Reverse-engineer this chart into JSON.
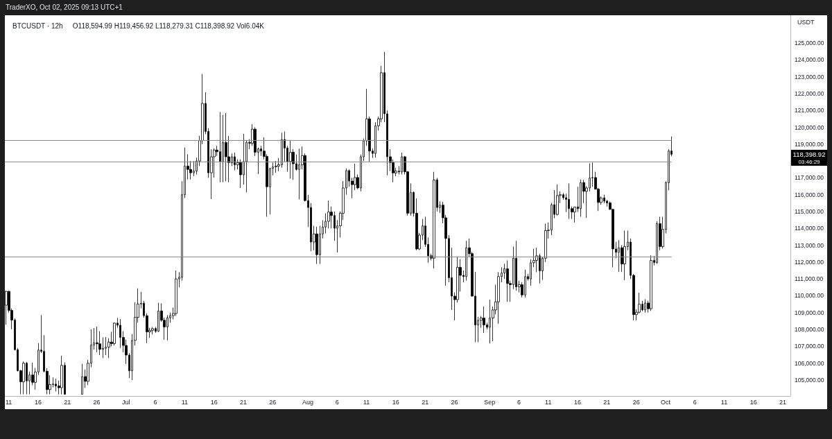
{
  "chart_data": {
    "type": "candlestick",
    "title": "BTCUSDT · 12h",
    "subtitle": "O118,594.99 H119,456.92 L118,279.31 C118,398.92 Vol6.04K",
    "ylabel": "USDT",
    "annotations": [
      "TraderXO, Oct 02, 2025 09:13 UTC+1",
      "118,398.92",
      "03:46:29"
    ],
    "x": [
      "2025-06-10T13:00",
      "2025-06-11T01:00",
      "2025-06-11T13:00",
      "2025-06-12T01:00",
      "2025-06-12T13:00",
      "2025-06-13T01:00",
      "2025-06-13T13:00",
      "2025-06-14T01:00",
      "2025-06-14T13:00",
      "2025-06-15T01:00",
      "2025-06-15T13:00",
      "2025-06-16T01:00",
      "2025-06-16T13:00",
      "2025-06-17T01:00",
      "2025-06-17T13:00",
      "2025-06-18T01:00",
      "2025-06-18T13:00",
      "2025-06-19T01:00",
      "2025-06-19T13:00",
      "2025-06-20T01:00",
      "2025-06-20T13:00",
      "2025-06-23T13:00",
      "2025-06-24T01:00",
      "2025-06-24T13:00",
      "2025-06-25T01:00",
      "2025-06-25T13:00",
      "2025-06-26T01:00",
      "2025-06-26T13:00",
      "2025-06-27T01:00",
      "2025-06-27T13:00",
      "2025-06-28T01:00",
      "2025-06-28T13:00",
      "2025-06-29T01:00",
      "2025-06-29T13:00",
      "2025-06-30T01:00",
      "2025-06-30T13:00",
      "2025-07-01T01:00",
      "2025-07-01T13:00",
      "2025-07-02T01:00",
      "2025-07-02T13:00",
      "2025-07-03T01:00",
      "2025-07-03T13:00",
      "2025-07-04T01:00",
      "2025-07-04T13:00",
      "2025-07-05T01:00",
      "2025-07-05T13:00",
      "2025-07-06T01:00",
      "2025-07-06T13:00",
      "2025-07-07T01:00",
      "2025-07-07T13:00",
      "2025-07-08T01:00",
      "2025-07-08T13:00",
      "2025-07-09T01:00",
      "2025-07-09T13:00",
      "2025-07-10T01:00",
      "2025-07-10T13:00",
      "2025-07-11T01:00",
      "2025-07-11T13:00",
      "2025-07-12T01:00",
      "2025-07-12T13:00",
      "2025-07-13T01:00",
      "2025-07-13T13:00",
      "2025-07-14T01:00",
      "2025-07-14T13:00",
      "2025-07-15T01:00",
      "2025-07-15T13:00",
      "2025-07-16T01:00",
      "2025-07-16T13:00",
      "2025-07-17T01:00",
      "2025-07-17T13:00",
      "2025-07-18T01:00",
      "2025-07-18T13:00",
      "2025-07-19T01:00",
      "2025-07-19T13:00",
      "2025-07-20T01:00",
      "2025-07-20T13:00",
      "2025-07-21T01:00",
      "2025-07-21T13:00",
      "2025-07-22T01:00",
      "2025-07-22T13:00",
      "2025-07-23T01:00",
      "2025-07-23T13:00",
      "2025-07-24T01:00",
      "2025-07-24T13:00",
      "2025-07-25T01:00",
      "2025-07-25T13:00",
      "2025-07-26T01:00",
      "2025-07-26T13:00",
      "2025-07-27T01:00",
      "2025-07-27T13:00",
      "2025-07-28T01:00",
      "2025-07-28T13:00",
      "2025-07-29T01:00",
      "2025-07-29T13:00",
      "2025-07-30T01:00",
      "2025-07-30T13:00",
      "2025-07-31T01:00",
      "2025-07-31T13:00",
      "2025-08-01T01:00",
      "2025-08-01T13:00",
      "2025-08-02T01:00",
      "2025-08-02T13:00",
      "2025-08-03T01:00",
      "2025-08-03T13:00",
      "2025-08-04T01:00",
      "2025-08-04T13:00",
      "2025-08-05T01:00",
      "2025-08-05T13:00",
      "2025-08-06T01:00",
      "2025-08-06T13:00",
      "2025-08-07T01:00",
      "2025-08-07T13:00",
      "2025-08-08T01:00",
      "2025-08-08T13:00",
      "2025-08-09T01:00",
      "2025-08-09T13:00",
      "2025-08-10T01:00",
      "2025-08-10T13:00",
      "2025-08-11T01:00",
      "2025-08-11T13:00",
      "2025-08-12T01:00",
      "2025-08-12T13:00",
      "2025-08-13T01:00",
      "2025-08-13T13:00",
      "2025-08-14T01:00",
      "2025-08-14T13:00",
      "2025-08-15T01:00",
      "2025-08-15T13:00",
      "2025-08-16T01:00",
      "2025-08-16T13:00",
      "2025-08-17T01:00",
      "2025-08-17T13:00",
      "2025-08-18T01:00",
      "2025-08-18T13:00",
      "2025-08-19T01:00",
      "2025-08-19T13:00",
      "2025-08-20T01:00",
      "2025-08-20T13:00",
      "2025-08-21T01:00",
      "2025-08-21T13:00",
      "2025-08-22T01:00",
      "2025-08-22T13:00",
      "2025-08-23T01:00",
      "2025-08-23T13:00",
      "2025-08-24T01:00",
      "2025-08-24T13:00",
      "2025-08-25T01:00",
      "2025-08-25T13:00",
      "2025-08-26T01:00",
      "2025-08-26T13:00",
      "2025-08-27T01:00",
      "2025-08-27T13:00",
      "2025-08-28T01:00",
      "2025-08-28T13:00",
      "2025-08-29T01:00",
      "2025-08-29T13:00",
      "2025-08-30T01:00",
      "2025-08-30T13:00",
      "2025-08-31T01:00",
      "2025-08-31T13:00",
      "2025-09-01T01:00",
      "2025-09-01T13:00",
      "2025-09-02T01:00",
      "2025-09-02T13:00",
      "2025-09-03T01:00",
      "2025-09-03T13:00",
      "2025-09-04T01:00",
      "2025-09-04T13:00",
      "2025-09-05T01:00",
      "2025-09-05T13:00",
      "2025-09-06T01:00",
      "2025-09-06T13:00",
      "2025-09-07T01:00",
      "2025-09-07T13:00",
      "2025-09-08T01:00",
      "2025-09-08T13:00",
      "2025-09-09T01:00",
      "2025-09-09T13:00",
      "2025-09-10T01:00",
      "2025-09-10T13:00",
      "2025-09-11T01:00",
      "2025-09-11T13:00",
      "2025-09-12T01:00",
      "2025-09-12T13:00",
      "2025-09-13T01:00",
      "2025-09-13T13:00",
      "2025-09-14T01:00",
      "2025-09-14T13:00",
      "2025-09-15T01:00",
      "2025-09-15T13:00",
      "2025-09-16T01:00",
      "2025-09-16T13:00",
      "2025-09-17T01:00",
      "2025-09-17T13:00",
      "2025-09-18T01:00",
      "2025-09-18T13:00",
      "2025-09-19T01:00",
      "2025-09-19T13:00",
      "2025-09-20T01:00",
      "2025-09-20T13:00",
      "2025-09-21T01:00",
      "2025-09-21T13:00",
      "2025-09-22T01:00",
      "2025-09-22T13:00",
      "2025-09-23T01:00",
      "2025-09-23T13:00",
      "2025-09-24T01:00",
      "2025-09-24T13:00",
      "2025-09-25T01:00",
      "2025-09-25T13:00",
      "2025-09-26T01:00",
      "2025-09-26T13:00",
      "2025-09-27T01:00",
      "2025-09-27T13:00",
      "2025-09-28T01:00",
      "2025-09-28T13:00",
      "2025-09-29T01:00",
      "2025-09-29T13:00",
      "2025-09-30T01:00",
      "2025-09-30T13:00",
      "2025-10-01T01:00",
      "2025-10-01T13:00",
      "2025-10-02T01:00"
    ],
    "ohlc": [
      [
        109440,
        110300,
        108280,
        110260
      ],
      [
        110260,
        110300,
        109000,
        109130
      ],
      [
        109130,
        109250,
        108010,
        108560
      ],
      [
        108560,
        108650,
        106750,
        106800
      ],
      [
        106800,
        106900,
        105500,
        105550
      ],
      [
        105550,
        105600,
        104150,
        104890
      ],
      [
        104890,
        106100,
        104150,
        106000
      ],
      [
        106000,
        106080,
        104150,
        104950
      ],
      [
        104950,
        105500,
        104150,
        105300
      ],
      [
        105300,
        106030,
        104700,
        104860
      ],
      [
        104860,
        105710,
        104430,
        105480
      ],
      [
        105480,
        107190,
        105300,
        106780
      ],
      [
        106780,
        108850,
        106600,
        106700
      ],
      [
        106700,
        107660,
        105450,
        105520
      ],
      [
        105520,
        105700,
        104150,
        104430
      ],
      [
        104430,
        105290,
        104150,
        104730
      ],
      [
        104730,
        105150,
        104560,
        104760
      ],
      [
        104760,
        105080,
        104320,
        104650
      ],
      [
        104650,
        104970,
        104150,
        104540
      ],
      [
        104540,
        106440,
        104150,
        105870
      ],
      [
        105870,
        106040,
        104150,
        104150
      ],
      [
        104150,
        105960,
        104150,
        105200
      ],
      [
        105200,
        105620,
        104530,
        104920
      ],
      [
        104920,
        106200,
        104700,
        106000
      ],
      [
        106000,
        108010,
        105750,
        107080
      ],
      [
        107080,
        108080,
        106800,
        107210
      ],
      [
        107210,
        108170,
        106650,
        107150
      ],
      [
        107150,
        107900,
        106480,
        106820
      ],
      [
        106820,
        107530,
        106300,
        106880
      ],
      [
        106880,
        107550,
        106480,
        106950
      ],
      [
        106950,
        107480,
        106300,
        107250
      ],
      [
        107250,
        107860,
        107000,
        107160
      ],
      [
        107160,
        108420,
        107050,
        108380
      ],
      [
        108380,
        108690,
        108100,
        108250
      ],
      [
        108250,
        108620,
        106900,
        107530
      ],
      [
        107530,
        107900,
        106650,
        107050
      ],
      [
        107050,
        107400,
        105950,
        106480
      ],
      [
        106480,
        106600,
        105110,
        105550
      ],
      [
        105550,
        107730,
        105000,
        107350
      ],
      [
        107350,
        109620,
        107050,
        108720
      ],
      [
        108720,
        110440,
        108400,
        109510
      ],
      [
        109510,
        110230,
        109250,
        109560
      ],
      [
        109560,
        109700,
        108700,
        108820
      ],
      [
        108820,
        108950,
        107190,
        107860
      ],
      [
        107860,
        108100,
        107500,
        107950
      ],
      [
        107950,
        108150,
        107700,
        108050
      ],
      [
        108050,
        108150,
        107800,
        107900
      ],
      [
        107900,
        109580,
        107850,
        109100
      ],
      [
        109100,
        109550,
        108450,
        108550
      ],
      [
        108550,
        108700,
        107390,
        108150
      ],
      [
        108150,
        108850,
        107350,
        108690
      ],
      [
        108690,
        109000,
        108400,
        108820
      ],
      [
        108820,
        109300,
        108600,
        108950
      ],
      [
        108950,
        111500,
        108800,
        111000
      ],
      [
        111000,
        111400,
        110500,
        111100
      ],
      [
        111100,
        116800,
        110900,
        116000
      ],
      [
        116000,
        118800,
        115800,
        117700
      ],
      [
        117700,
        118400,
        116900,
        117500
      ],
      [
        117500,
        118000,
        116900,
        117300
      ],
      [
        117300,
        118000,
        117100,
        117400
      ],
      [
        117400,
        118200,
        117200,
        118000
      ],
      [
        118000,
        119500,
        117700,
        119210
      ],
      [
        119210,
        123170,
        119000,
        121420
      ],
      [
        121420,
        122080,
        119600,
        119750
      ],
      [
        119750,
        119950,
        117000,
        117300
      ],
      [
        117300,
        118700,
        115740,
        118250
      ],
      [
        118250,
        118750,
        117010,
        118650
      ],
      [
        118650,
        118900,
        118300,
        118550
      ],
      [
        118550,
        120910,
        116740,
        117950
      ],
      [
        117950,
        120730,
        116740,
        119100
      ],
      [
        119100,
        120850,
        116800,
        118250
      ],
      [
        118250,
        119480,
        116740,
        117900
      ],
      [
        117900,
        118450,
        117700,
        118250
      ],
      [
        118250,
        118500,
        117450,
        117770
      ],
      [
        117770,
        118100,
        117500,
        117900
      ],
      [
        117900,
        118100,
        116400,
        117180
      ],
      [
        117180,
        119610,
        116600,
        117970
      ],
      [
        117970,
        119200,
        116130,
        119100
      ],
      [
        119100,
        119300,
        118700,
        119050
      ],
      [
        119050,
        120190,
        118900,
        119890
      ],
      [
        119890,
        120000,
        118300,
        118520
      ],
      [
        118520,
        118800,
        117220,
        118720
      ],
      [
        118720,
        118900,
        118300,
        118590
      ],
      [
        118590,
        119410,
        118100,
        118270
      ],
      [
        118270,
        118400,
        114690,
        116470
      ],
      [
        116470,
        117600,
        114830,
        117560
      ],
      [
        117560,
        117900,
        117150,
        117650
      ],
      [
        117650,
        118000,
        117300,
        117700
      ],
      [
        117700,
        118180,
        117400,
        117780
      ],
      [
        117780,
        119680,
        117600,
        119270
      ],
      [
        119270,
        119750,
        117970,
        118770
      ],
      [
        118770,
        118900,
        117360,
        117970
      ],
      [
        117970,
        119200,
        116950,
        118520
      ],
      [
        118520,
        118700,
        116880,
        117840
      ],
      [
        117840,
        118380,
        117430,
        117500
      ],
      [
        117500,
        118730,
        115720,
        117770
      ],
      [
        117770,
        118860,
        117500,
        118320
      ],
      [
        118320,
        118450,
        115600,
        115650
      ],
      [
        115650,
        115990,
        114080,
        115240
      ],
      [
        115240,
        115500,
        112640,
        113190
      ],
      [
        113190,
        114150,
        112700,
        113670
      ],
      [
        113670,
        114100,
        111890,
        112440
      ],
      [
        112440,
        114150,
        111890,
        113670
      ],
      [
        113670,
        114490,
        113400,
        114080
      ],
      [
        114080,
        114900,
        113700,
        114420
      ],
      [
        114420,
        115650,
        114000,
        114970
      ],
      [
        114970,
        115300,
        114000,
        114760
      ],
      [
        114760,
        115000,
        113260,
        114010
      ],
      [
        114010,
        114500,
        112570,
        114150
      ],
      [
        114150,
        115000,
        113460,
        114900
      ],
      [
        114900,
        116810,
        114500,
        116400
      ],
      [
        116400,
        117560,
        116000,
        117430
      ],
      [
        117430,
        117500,
        116470,
        116810
      ],
      [
        116810,
        117000,
        115790,
        116600
      ],
      [
        116600,
        117840,
        116270,
        117020
      ],
      [
        117020,
        117200,
        116330,
        116400
      ],
      [
        116400,
        118380,
        116200,
        118250
      ],
      [
        118250,
        119340,
        118000,
        119200
      ],
      [
        119200,
        122280,
        118900,
        120500
      ],
      [
        120500,
        120640,
        117970,
        118590
      ],
      [
        118590,
        118750,
        118180,
        118450
      ],
      [
        118450,
        120300,
        118200,
        120090
      ],
      [
        120090,
        120640,
        119800,
        120500
      ],
      [
        120500,
        123650,
        120300,
        123240
      ],
      [
        123240,
        124470,
        120300,
        120800
      ],
      [
        120800,
        121000,
        117150,
        118250
      ],
      [
        118250,
        118700,
        117400,
        117900
      ],
      [
        117900,
        118100,
        116740,
        117290
      ],
      [
        117290,
        117600,
        117100,
        117400
      ],
      [
        117400,
        117700,
        117200,
        117350
      ],
      [
        117350,
        118500,
        117200,
        118250
      ],
      [
        118250,
        118300,
        117200,
        117360
      ],
      [
        117360,
        117400,
        114760,
        114900
      ],
      [
        114900,
        116670,
        114760,
        116130
      ],
      [
        116130,
        116200,
        114700,
        114900
      ],
      [
        114900,
        115780,
        112700,
        112780
      ],
      [
        112780,
        113740,
        112710,
        113600
      ],
      [
        113600,
        114560,
        113300,
        114150
      ],
      [
        114150,
        114690,
        112900,
        113050
      ],
      [
        113050,
        113460,
        111960,
        112370
      ],
      [
        112370,
        112500,
        112100,
        112230
      ],
      [
        112230,
        117360,
        111620,
        116880
      ],
      [
        116880,
        117000,
        115000,
        115240
      ],
      [
        115240,
        115600,
        114900,
        115380
      ],
      [
        115380,
        115580,
        114300,
        114630
      ],
      [
        114630,
        114800,
        110600,
        113400
      ],
      [
        113400,
        113600,
        110800,
        111070
      ],
      [
        111070,
        112850,
        109160,
        109980
      ],
      [
        109980,
        110200,
        108540,
        109770
      ],
      [
        109770,
        112300,
        109600,
        111690
      ],
      [
        111690,
        112170,
        110250,
        111210
      ],
      [
        111210,
        111500,
        110800,
        111140
      ],
      [
        111140,
        113260,
        110900,
        112850
      ],
      [
        112850,
        113400,
        112300,
        112500
      ],
      [
        112500,
        112600,
        109950,
        109980
      ],
      [
        109980,
        111410,
        107240,
        108270
      ],
      [
        108270,
        108750,
        107240,
        108540
      ],
      [
        108540,
        108800,
        108100,
        108680
      ],
      [
        108680,
        109360,
        107790,
        108270
      ],
      [
        108270,
        108400,
        108000,
        108130
      ],
      [
        108130,
        109770,
        107170,
        108680
      ],
      [
        108680,
        109360,
        107300,
        109160
      ],
      [
        109160,
        110660,
        108900,
        109640
      ],
      [
        109640,
        111400,
        108340,
        111140
      ],
      [
        111140,
        111690,
        110800,
        111350
      ],
      [
        111350,
        111900,
        111000,
        111600
      ],
      [
        111600,
        112100,
        109640,
        110730
      ],
      [
        110730,
        110900,
        109640,
        110660
      ],
      [
        110660,
        112920,
        110400,
        112230
      ],
      [
        112230,
        113260,
        110300,
        110530
      ],
      [
        110530,
        110900,
        110200,
        110660
      ],
      [
        110660,
        110800,
        109900,
        110050
      ],
      [
        110050,
        111550,
        109900,
        111140
      ],
      [
        111140,
        111300,
        110900,
        111000
      ],
      [
        111000,
        112170,
        110600,
        111960
      ],
      [
        111960,
        112780,
        111700,
        112100
      ],
      [
        112100,
        112850,
        111400,
        112370
      ],
      [
        112370,
        112500,
        110730,
        111480
      ],
      [
        111480,
        112300,
        110940,
        112230
      ],
      [
        112230,
        114280,
        112000,
        113870
      ],
      [
        113870,
        114350,
        113400,
        113900
      ],
      [
        113900,
        115520,
        113600,
        115400
      ],
      [
        115400,
        116270,
        114600,
        114830
      ],
      [
        114830,
        116610,
        114760,
        115950
      ],
      [
        115950,
        116200,
        115500,
        116000
      ],
      [
        116000,
        116100,
        115700,
        115820
      ],
      [
        115820,
        116060,
        114970,
        115720
      ],
      [
        115720,
        116670,
        114560,
        115170
      ],
      [
        115170,
        115300,
        114560,
        114970
      ],
      [
        114970,
        115280,
        114350,
        115270
      ],
      [
        115270,
        116470,
        114970,
        115170
      ],
      [
        115170,
        116900,
        114690,
        116720
      ],
      [
        116720,
        116880,
        115500,
        116200
      ],
      [
        116200,
        116500,
        114620,
        116400
      ],
      [
        116400,
        117860,
        116200,
        116990
      ],
      [
        116990,
        117900,
        116470,
        117020
      ],
      [
        117020,
        117360,
        116300,
        116330
      ],
      [
        116330,
        116400,
        115030,
        115540
      ],
      [
        115540,
        115900,
        115400,
        115810
      ],
      [
        115810,
        116000,
        115500,
        115620
      ],
      [
        115620,
        115700,
        115300,
        115510
      ],
      [
        115510,
        115600,
        115100,
        115130
      ],
      [
        115130,
        115150,
        111690,
        112780
      ],
      [
        112780,
        113200,
        112230,
        112580
      ],
      [
        112580,
        113300,
        111410,
        112850
      ],
      [
        112850,
        113000,
        111410,
        111890
      ],
      [
        111890,
        113870,
        110930,
        112920
      ],
      [
        112920,
        113870,
        112700,
        113190
      ],
      [
        113190,
        113400,
        111000,
        111210
      ],
      [
        111210,
        111300,
        108540,
        108880
      ],
      [
        108880,
        109200,
        108540,
        109020
      ],
      [
        109020,
        110180,
        108950,
        109500
      ],
      [
        109500,
        109700,
        109080,
        109160
      ],
      [
        109160,
        109800,
        109000,
        109570
      ],
      [
        109570,
        109700,
        109000,
        109230
      ],
      [
        109230,
        112400,
        109100,
        112100
      ],
      [
        112100,
        112370,
        111800,
        111970
      ],
      [
        111970,
        114420,
        111890,
        114280
      ],
      [
        114280,
        114690,
        112700,
        112920
      ],
      [
        112920,
        114690,
        112800,
        113940
      ],
      [
        113940,
        116800,
        113700,
        116710
      ],
      [
        116710,
        118700,
        116260,
        118594.99
      ],
      [
        118594.99,
        119456.92,
        118279.31,
        118398.92
      ]
    ],
    "xlim": [
      "2025-06-10T08:00",
      "2025-10-22T07:00"
    ],
    "xticks": [
      {
        "value": "2025-06-11",
        "label": "11"
      },
      {
        "value": "2025-06-16",
        "label": "16"
      },
      {
        "value": "2025-06-21",
        "label": "21"
      },
      {
        "value": "2025-06-26",
        "label": "26"
      },
      {
        "value": "2025-07-01",
        "label": "Jul"
      },
      {
        "value": "2025-07-06",
        "label": "6"
      },
      {
        "value": "2025-07-11",
        "label": "11"
      },
      {
        "value": "2025-07-16",
        "label": "16"
      },
      {
        "value": "2025-07-21",
        "label": "21"
      },
      {
        "value": "2025-07-26",
        "label": "26"
      },
      {
        "value": "2025-08-01",
        "label": "Aug"
      },
      {
        "value": "2025-08-06",
        "label": "6"
      },
      {
        "value": "2025-08-11",
        "label": "11"
      },
      {
        "value": "2025-08-16",
        "label": "16"
      },
      {
        "value": "2025-08-21",
        "label": "21"
      },
      {
        "value": "2025-08-26",
        "label": "26"
      },
      {
        "value": "2025-09-01",
        "label": "Sep"
      },
      {
        "value": "2025-09-06",
        "label": "6"
      },
      {
        "value": "2025-09-11",
        "label": "11"
      },
      {
        "value": "2025-09-16",
        "label": "16"
      },
      {
        "value": "2025-09-21",
        "label": "21"
      },
      {
        "value": "2025-09-26",
        "label": "26"
      },
      {
        "value": "2025-10-01",
        "label": "Oct"
      },
      {
        "value": "2025-10-06",
        "label": "6"
      },
      {
        "value": "2025-10-11",
        "label": "11"
      },
      {
        "value": "2025-10-16",
        "label": "16"
      },
      {
        "value": "2025-10-21",
        "label": "21"
      }
    ],
    "ylim": [
      104050,
      126650
    ],
    "yticks": [
      {
        "value": 105000,
        "label": "105,000.00"
      },
      {
        "value": 106000,
        "label": "106,000.00"
      },
      {
        "value": 107000,
        "label": "107,000.00"
      },
      {
        "value": 108000,
        "label": "108,000.00"
      },
      {
        "value": 109000,
        "label": "109,000.00"
      },
      {
        "value": 110000,
        "label": "110,000.00"
      },
      {
        "value": 111000,
        "label": "111,000.00"
      },
      {
        "value": 112000,
        "label": "112,000.00"
      },
      {
        "value": 113000,
        "label": "113,000.00"
      },
      {
        "value": 114000,
        "label": "114,000.00"
      },
      {
        "value": 115000,
        "label": "115,000.00"
      },
      {
        "value": 116000,
        "label": "116,000.00"
      },
      {
        "value": 117000,
        "label": "117,000.00"
      },
      {
        "value": 119000,
        "label": "119,000.00"
      },
      {
        "value": 120000,
        "label": "120,000.00"
      },
      {
        "value": 121000,
        "label": "121,000.00"
      },
      {
        "value": 122000,
        "label": "122,000.00"
      },
      {
        "value": 123000,
        "label": "123,000.00"
      },
      {
        "value": 124000,
        "label": "124,000.00"
      },
      {
        "value": 125000,
        "label": "125,000.00"
      }
    ],
    "ref_lines": [
      {
        "axis": "y",
        "value": 119230,
        "color": "#8c8c8c"
      },
      {
        "axis": "y",
        "value": 117940,
        "color": "#8c8c8c"
      },
      {
        "axis": "y",
        "value": 112310,
        "color": "#8c8c8c"
      }
    ]
  }
}
